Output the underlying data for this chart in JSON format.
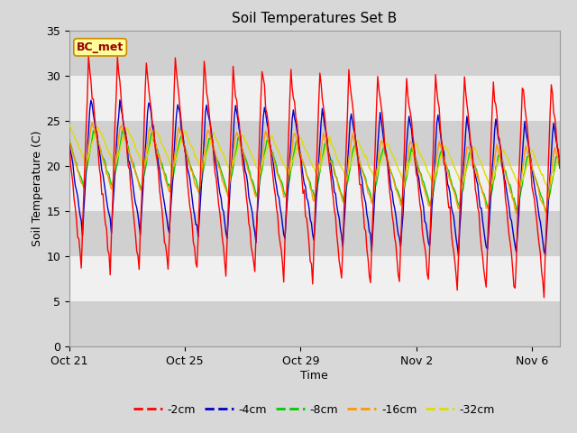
{
  "title": "Soil Temperatures Set B",
  "xlabel": "Time",
  "ylabel": "Soil Temperature (C)",
  "ylim": [
    0,
    35
  ],
  "yticks": [
    0,
    5,
    10,
    15,
    20,
    25,
    30,
    35
  ],
  "xtick_labels": [
    "Oct 21",
    "Oct 25",
    "Oct 29",
    "Nov 2",
    "Nov 6"
  ],
  "legend_labels": [
    "-2cm",
    "-4cm",
    "-8cm",
    "-16cm",
    "-32cm"
  ],
  "line_colors": [
    "#ff0000",
    "#0000cc",
    "#00cc00",
    "#ff9900",
    "#dddd00"
  ],
  "annotation_text": "BC_met",
  "annotation_bg": "#ffff99",
  "annotation_border": "#cc8800",
  "annotation_text_color": "#990000",
  "n_days": 17,
  "fig_bg": "#d8d8d8",
  "band_light": "#f0f0f0",
  "band_dark": "#d0d0d0"
}
